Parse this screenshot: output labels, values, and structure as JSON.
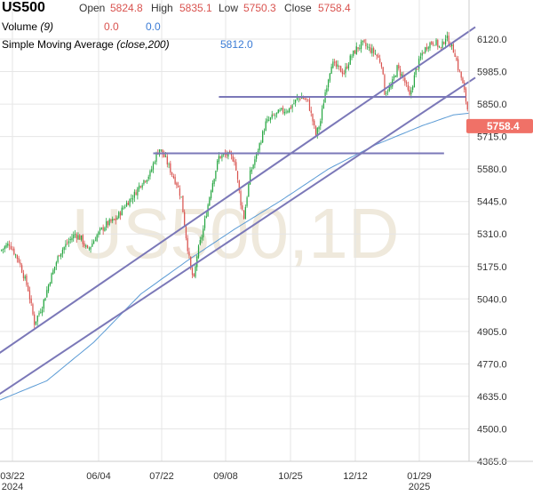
{
  "header": {
    "symbol": "US500",
    "open_label": "Open",
    "open_value": "5824.8",
    "high_label": "High",
    "high_value": "5835.1",
    "low_label": "Low",
    "low_value": "5750.3",
    "close_label": "Close",
    "close_value": "5758.4",
    "volume_label": "Volume",
    "volume_param": "(9)",
    "volume_v1": "0.0",
    "volume_v2": "0.0",
    "sma_label": "Simple Moving Average",
    "sma_param": "(close,200)",
    "sma_value": "5812.0"
  },
  "colors": {
    "up": "#26a641",
    "down": "#d9534f",
    "sma": "#5b9bd5",
    "trendline": "#7b78b8",
    "price_badge": "#f07167",
    "watermark": "#efe9dc",
    "grid": "#e6e6e6"
  },
  "chart_data": {
    "type": "candlestick",
    "watermark": "US500,1D",
    "current_price": 5758.4,
    "ylim": [
      4365,
      6180
    ],
    "y_ticks": [
      "6120.0",
      "5985.0",
      "5850.0",
      "5715.0",
      "5580.0",
      "5445.0",
      "5310.0",
      "5175.0",
      "5040.0",
      "4905.0",
      "4770.0",
      "4635.0",
      "4500.0",
      "4365.0"
    ],
    "x_ticks": [
      {
        "label": "03/22",
        "year": "2024"
      },
      {
        "label": "06/04",
        "year": ""
      },
      {
        "label": "07/22",
        "year": ""
      },
      {
        "label": "09/08",
        "year": ""
      },
      {
        "label": "10/25",
        "year": ""
      },
      {
        "label": "12/12",
        "year": ""
      },
      {
        "label": "01/29",
        "year": "2025"
      }
    ],
    "price_path": [
      [
        0,
        5240
      ],
      [
        6,
        5270
      ],
      [
        12,
        5200
      ],
      [
        18,
        5080
      ],
      [
        22,
        4940
      ],
      [
        27,
        5010
      ],
      [
        32,
        5120
      ],
      [
        38,
        5230
      ],
      [
        44,
        5280
      ],
      [
        48,
        5310
      ],
      [
        52,
        5290
      ],
      [
        56,
        5240
      ],
      [
        62,
        5305
      ],
      [
        68,
        5350
      ],
      [
        74,
        5370
      ],
      [
        80,
        5430
      ],
      [
        86,
        5475
      ],
      [
        90,
        5520
      ],
      [
        96,
        5560
      ],
      [
        100,
        5640
      ],
      [
        102,
        5665
      ],
      [
        106,
        5620
      ],
      [
        110,
        5560
      ],
      [
        113,
        5520
      ],
      [
        116,
        5460
      ],
      [
        119,
        5300
      ],
      [
        122,
        5160
      ],
      [
        124,
        5120
      ],
      [
        126,
        5220
      ],
      [
        130,
        5330
      ],
      [
        135,
        5500
      ],
      [
        140,
        5630
      ],
      [
        145,
        5640
      ],
      [
        150,
        5620
      ],
      [
        154,
        5440
      ],
      [
        156,
        5380
      ],
      [
        160,
        5560
      ],
      [
        165,
        5660
      ],
      [
        170,
        5770
      ],
      [
        175,
        5800
      ],
      [
        180,
        5820
      ],
      [
        185,
        5830
      ],
      [
        190,
        5870
      ],
      [
        193,
        5880
      ],
      [
        197,
        5860
      ],
      [
        200,
        5780
      ],
      [
        202,
        5720
      ],
      [
        205,
        5780
      ],
      [
        208,
        5900
      ],
      [
        212,
        6020
      ],
      [
        216,
        6000
      ],
      [
        220,
        5980
      ],
      [
        224,
        6040
      ],
      [
        228,
        6080
      ],
      [
        232,
        6100
      ],
      [
        236,
        6080
      ],
      [
        240,
        6060
      ],
      [
        244,
        6020
      ],
      [
        246,
        5900
      ],
      [
        250,
        5920
      ],
      [
        254,
        6000
      ],
      [
        258,
        5960
      ],
      [
        262,
        5880
      ],
      [
        266,
        5990
      ],
      [
        270,
        6060
      ],
      [
        274,
        6100
      ],
      [
        278,
        6110
      ],
      [
        282,
        6080
      ],
      [
        285,
        6130
      ],
      [
        288,
        6100
      ],
      [
        291,
        6060
      ],
      [
        293,
        6000
      ],
      [
        295,
        5960
      ],
      [
        297,
        5900
      ],
      [
        299,
        5830
      ],
      [
        300,
        5760
      ]
    ],
    "sma_path": [
      [
        0,
        4620
      ],
      [
        30,
        4700
      ],
      [
        60,
        4860
      ],
      [
        90,
        5060
      ],
      [
        120,
        5200
      ],
      [
        150,
        5330
      ],
      [
        180,
        5450
      ],
      [
        210,
        5580
      ],
      [
        240,
        5680
      ],
      [
        270,
        5760
      ],
      [
        290,
        5805
      ],
      [
        300,
        5812
      ]
    ],
    "trendlines": [
      {
        "from": [
          -6,
          4790
        ],
        "to": [
          304,
          6170
        ]
      },
      {
        "from": [
          -6,
          4620
        ],
        "to": [
          304,
          5960
        ]
      },
      {
        "from": [
          140,
          5880
        ],
        "to": [
          298,
          5880
        ]
      },
      {
        "from": [
          98,
          5645
        ],
        "to": [
          284,
          5645
        ]
      }
    ]
  }
}
